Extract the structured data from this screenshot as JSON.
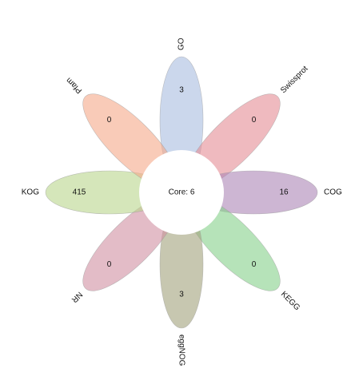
{
  "diagram": {
    "core_label": "Core: 6",
    "petals": [
      {
        "name": "GO",
        "count": "3",
        "color": "#a9bde0"
      },
      {
        "name": "Swissprot",
        "count": "0",
        "color": "#e48c94"
      },
      {
        "name": "COG",
        "count": "16",
        "color": "#ab86b6"
      },
      {
        "name": "KEGG",
        "count": "0",
        "color": "#86d18b"
      },
      {
        "name": "eggNOG",
        "count": "3",
        "color": "#a1a27c"
      },
      {
        "name": "NR",
        "count": "0",
        "color": "#d08fa1"
      },
      {
        "name": "KOG",
        "count": "415",
        "color": "#b9d68c"
      },
      {
        "name": "Pfam",
        "count": "0",
        "color": "#f5a889"
      }
    ]
  }
}
